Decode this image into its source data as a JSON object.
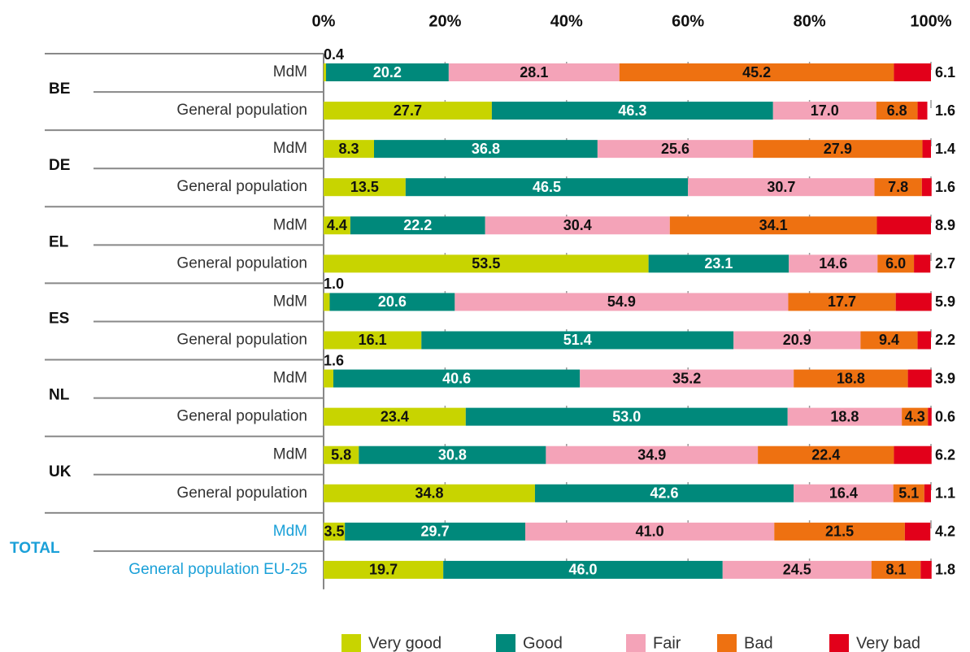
{
  "chart_data": {
    "type": "stacked-bar-horizontal",
    "groups": [
      "BE",
      "DE",
      "EL",
      "ES",
      "NL",
      "UK",
      "TOTAL"
    ],
    "categories": [
      "MdM",
      "General population",
      "MdM",
      "General population",
      "MdM",
      "General population",
      "MdM",
      "General population",
      "MdM",
      "General population",
      "MdM",
      "General population",
      "MdM",
      "General population EU-25"
    ],
    "xlim": [
      0,
      100
    ],
    "xticks": [
      {
        "value": 0,
        "label": "0%"
      },
      {
        "value": 20,
        "label": "20%"
      },
      {
        "value": 40,
        "label": "40%"
      },
      {
        "value": 60,
        "label": "60%"
      },
      {
        "value": 80,
        "label": "80%"
      },
      {
        "value": 100,
        "label": "100%"
      }
    ],
    "series": [
      {
        "name": "Very good",
        "color": "#c8d400",
        "values": [
          0.4,
          27.7,
          8.3,
          13.5,
          4.4,
          53.5,
          1.0,
          16.1,
          1.6,
          23.4,
          5.8,
          34.8,
          3.5,
          19.7
        ],
        "value_labels": [
          "0.4",
          "27.7",
          "8.3",
          "13.5",
          "4.4",
          "53.5",
          "1.0",
          "16.1",
          "1.6",
          "23.4",
          "5.8",
          "34.8",
          "3.5",
          "19.7"
        ]
      },
      {
        "name": "Good",
        "color": "#00897b",
        "values": [
          20.2,
          46.3,
          36.8,
          46.5,
          22.2,
          23.1,
          20.6,
          51.4,
          40.6,
          53.0,
          30.8,
          42.6,
          29.7,
          46.0
        ],
        "value_labels": [
          "20.2",
          "46.3",
          "36.8",
          "46.5",
          "22.2",
          "23.1",
          "20.6",
          "51.4",
          "40.6",
          "53.0",
          "30.8",
          "42.6",
          "29.7",
          "46.0"
        ]
      },
      {
        "name": "Fair",
        "color": "#f4a3b8",
        "values": [
          28.1,
          17.0,
          25.6,
          30.7,
          30.4,
          14.6,
          54.9,
          20.9,
          35.2,
          18.8,
          34.9,
          16.4,
          41.0,
          24.5
        ],
        "value_labels": [
          "28.1",
          "17.0",
          "25.6",
          "30.7",
          "30.4",
          "14.6",
          "54.9",
          "20.9",
          "35.2",
          "18.8",
          "34.9",
          "16.4",
          "41.0",
          "24.5"
        ]
      },
      {
        "name": "Bad",
        "color": "#ee7111",
        "values": [
          45.2,
          6.8,
          27.9,
          7.8,
          34.1,
          6.0,
          17.7,
          9.4,
          18.8,
          4.3,
          22.4,
          5.1,
          21.5,
          8.1
        ],
        "value_labels": [
          "45.2",
          "6.8",
          "27.9",
          "7.8",
          "34.1",
          "6.0",
          "17.7",
          "9.4",
          "18.8",
          "4.3",
          "22.4",
          "5.1",
          "21.5",
          "8.1"
        ]
      },
      {
        "name": "Very bad",
        "color": "#e2001a",
        "values": [
          6.1,
          1.6,
          1.4,
          1.6,
          8.9,
          2.7,
          5.9,
          2.2,
          3.9,
          0.6,
          6.2,
          1.1,
          4.2,
          1.8
        ],
        "value_labels": [
          "6.1",
          "1.6",
          "1.4",
          "1.6",
          "8.9",
          "2.7",
          "5.9",
          "2.2",
          "3.9",
          "0.6",
          "6.2",
          "1.1",
          "4.2",
          "1.8"
        ]
      }
    ],
    "grid": true
  }
}
